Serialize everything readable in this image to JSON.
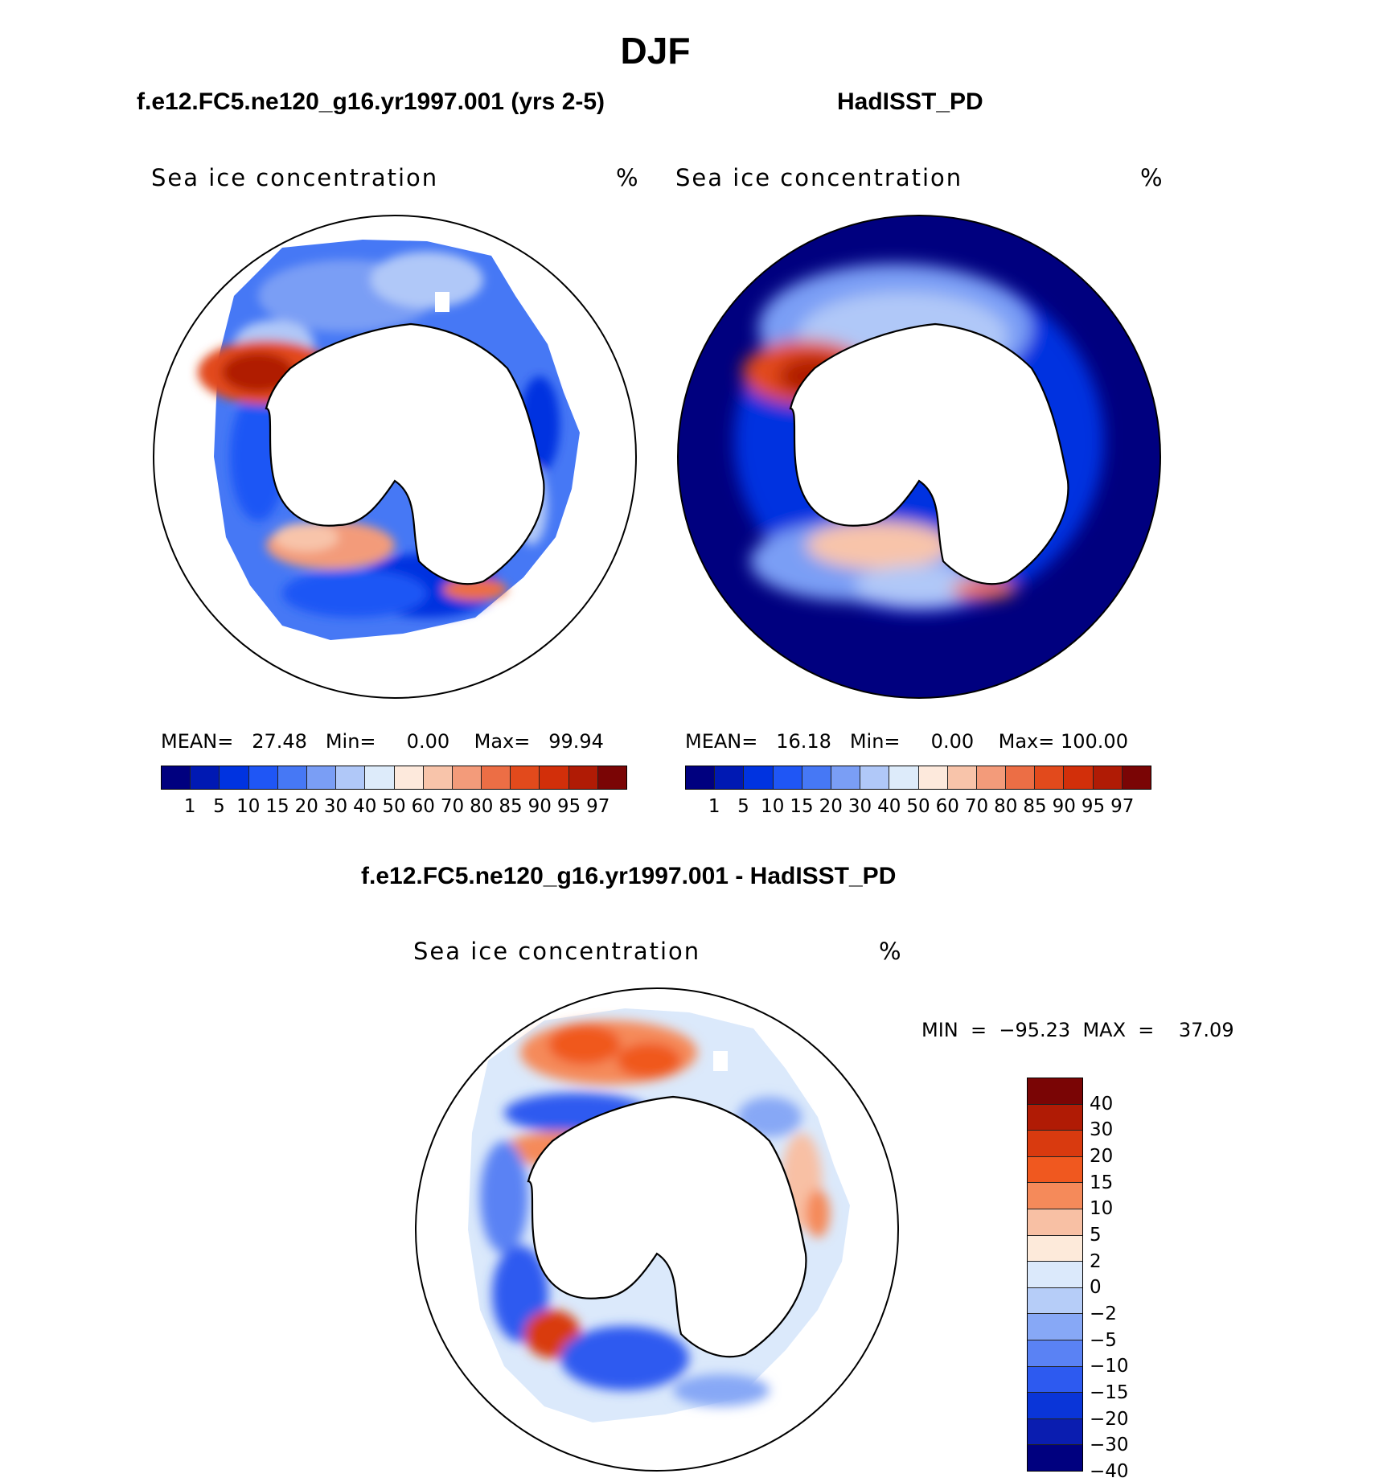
{
  "figure": {
    "title": "DJF",
    "colors": {
      "seq": [
        "#00007f",
        "#0019b3",
        "#0033e0",
        "#1f56f5",
        "#4678f5",
        "#7a9ef5",
        "#b0c8f8",
        "#ddebfa",
        "#fde9dc",
        "#f8c4aa",
        "#f39b7a",
        "#ec6e45",
        "#e24a1c",
        "#d22f0a",
        "#b01b05",
        "#7a0505"
      ],
      "div": [
        "#7a0505",
        "#b01b05",
        "#d93a0f",
        "#f0581f",
        "#f58a5a",
        "#f8c0a4",
        "#fdeada",
        "#dbe9fb",
        "#b6cdf8",
        "#87a8f6",
        "#5a82f4",
        "#2d5af0",
        "#0a35d8",
        "#0a1db0",
        "#00007f"
      ],
      "coast": "#000000"
    }
  },
  "panels": [
    {
      "title": "f.e12.FC5.ne120_g16.yr1997.001 (yrs 2-5)",
      "label": "Sea ice concentration",
      "units": "%",
      "stats": "MEAN=   27.48   Min=     0.00    Max=   99.94",
      "map": "model"
    },
    {
      "title": "HadISST_PD",
      "label": "Sea ice concentration",
      "units": "%",
      "stats": "MEAN=   16.18   Min=     0.00    Max= 100.00",
      "map": "obs"
    },
    {
      "title": "f.e12.FC5.ne120_g16.yr1997.001 - HadISST_PD",
      "label": "Sea ice concentration",
      "units": "%",
      "stats": "MIN  =  −95.23  MAX  =    37.09",
      "map": "diff"
    }
  ],
  "colorbar_levels": [
    "1",
    "5",
    "10",
    "15",
    "20",
    "30",
    "40",
    "50",
    "60",
    "70",
    "80",
    "85",
    "90",
    "95",
    "97"
  ],
  "diff_levels": [
    "40",
    "30",
    "20",
    "15",
    "10",
    "5",
    "2",
    "0",
    "−2",
    "−5",
    "−10",
    "−15",
    "−20",
    "−30",
    "−40"
  ]
}
